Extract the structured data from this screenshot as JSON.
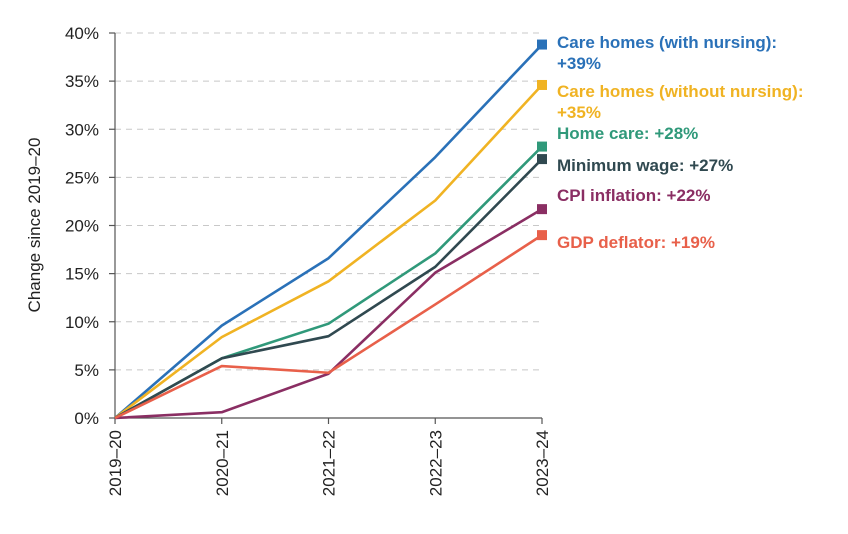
{
  "chart_data": {
    "type": "line",
    "title": "",
    "xlabel": "",
    "ylabel": "Change since 2019–20",
    "categories": [
      "2019–20",
      "2020–21",
      "2021–22",
      "2022–23",
      "2023–24"
    ],
    "y_ticks": [
      "0%",
      "5%",
      "10%",
      "15%",
      "20%",
      "25%",
      "30%",
      "35%",
      "40%"
    ],
    "ylim": [
      0,
      40
    ],
    "grid": "horizontal dashed",
    "legend_placement": "end-of-line labels, right",
    "series": [
      {
        "name": "Care homes (with nursing)",
        "label": "Care homes (with nursing): +39%",
        "label_lines": [
          "Care homes (with nursing):",
          "+39%"
        ],
        "color": "#2a71b8",
        "values": [
          0,
          9.6,
          16.6,
          27.1,
          38.8
        ]
      },
      {
        "name": "Care homes (without nursing)",
        "label": "Care homes (without nursing): +35%",
        "label_lines": [
          "Care homes (without nursing):",
          "+35%"
        ],
        "color": "#f0b323",
        "values": [
          0,
          8.4,
          14.2,
          22.6,
          34.6
        ]
      },
      {
        "name": "Home care",
        "label": "Home care: +28%",
        "label_lines": [
          "Home care: +28%"
        ],
        "color": "#30997a",
        "values": [
          0,
          6.2,
          9.8,
          17.1,
          28.2
        ]
      },
      {
        "name": "Minimum wage",
        "label": "Minimum wage: +27%",
        "label_lines": [
          "Minimum wage: +27%"
        ],
        "color": "#304950",
        "values": [
          0,
          6.2,
          8.5,
          15.7,
          26.9
        ]
      },
      {
        "name": "CPI inflation",
        "label": "CPI inflation: +22%",
        "label_lines": [
          "CPI inflation: +22%"
        ],
        "color": "#8a2e63",
        "values": [
          0,
          0.6,
          4.6,
          15.1,
          21.7
        ]
      },
      {
        "name": "GDP deflator",
        "label": "GDP deflator: +19%",
        "label_lines": [
          "GDP deflator: +19%"
        ],
        "color": "#e8604a",
        "values": [
          0,
          5.4,
          4.7,
          11.8,
          19.0
        ]
      }
    ]
  }
}
